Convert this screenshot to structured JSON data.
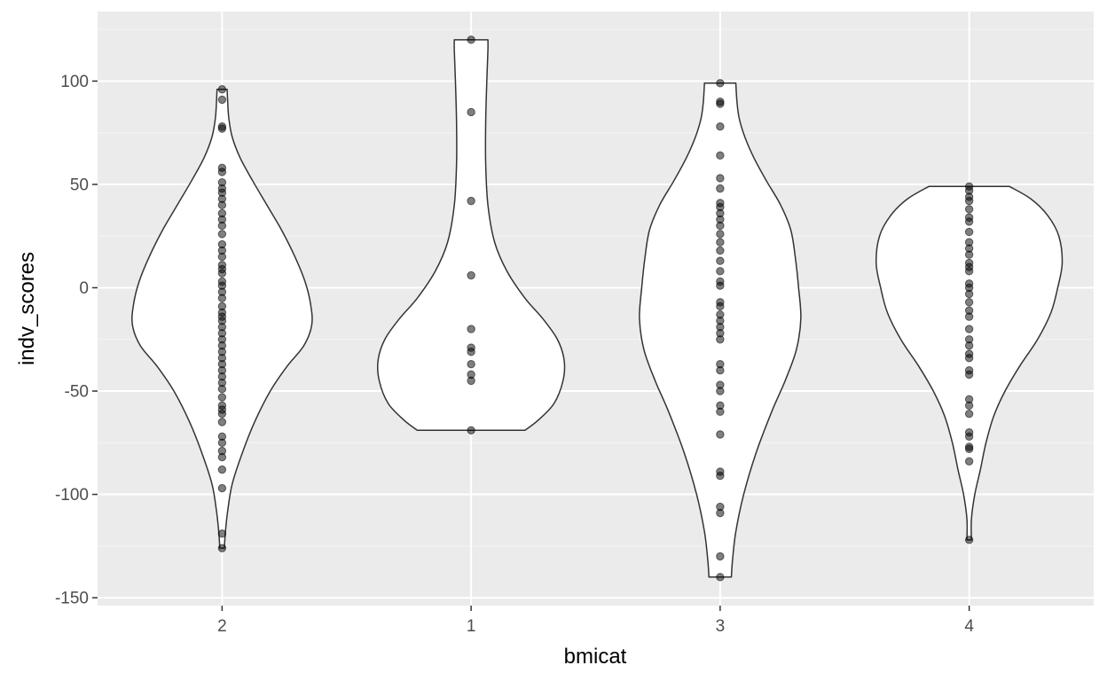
{
  "chart_data": {
    "type": "violin",
    "title": "",
    "xlabel": "bmicat",
    "ylabel": "indv_scores",
    "categories": [
      "2",
      "1",
      "3",
      "4"
    ],
    "ylim": [
      -153,
      121
    ],
    "yticks": [
      -150,
      -100,
      -50,
      0,
      50,
      100
    ],
    "ytick_labels": [
      "-150",
      "-100",
      "-50",
      "0",
      "50",
      "100"
    ],
    "grid": true,
    "colors": {
      "panel": "#ebebeb",
      "grid_major": "#ffffff",
      "grid_minor": "#f5f5f5",
      "violin_fill": "#ffffff",
      "violin_stroke": "#333333",
      "point": "#000000"
    },
    "violins": [
      {
        "category": "2",
        "range": [
          -126,
          96
        ],
        "profile": [
          {
            "y": -126,
            "w": 0.02
          },
          {
            "y": -118,
            "w": 0.03
          },
          {
            "y": -108,
            "w": 0.05
          },
          {
            "y": -95,
            "w": 0.09
          },
          {
            "y": -80,
            "w": 0.18
          },
          {
            "y": -65,
            "w": 0.29
          },
          {
            "y": -50,
            "w": 0.43
          },
          {
            "y": -38,
            "w": 0.58
          },
          {
            "y": -28,
            "w": 0.73
          },
          {
            "y": -18,
            "w": 0.8
          },
          {
            "y": -8,
            "w": 0.79
          },
          {
            "y": 3,
            "w": 0.74
          },
          {
            "y": 15,
            "w": 0.65
          },
          {
            "y": 28,
            "w": 0.53
          },
          {
            "y": 40,
            "w": 0.4
          },
          {
            "y": 52,
            "w": 0.27
          },
          {
            "y": 63,
            "w": 0.16
          },
          {
            "y": 73,
            "w": 0.09
          },
          {
            "y": 82,
            "w": 0.06
          },
          {
            "y": 90,
            "w": 0.05
          },
          {
            "y": 96,
            "w": 0.045
          }
        ],
        "points": [
          96,
          91,
          78,
          77,
          58,
          56,
          51,
          48,
          46,
          43,
          40,
          36,
          33,
          30,
          26,
          21,
          18,
          15,
          11,
          9,
          7,
          3,
          1,
          -2,
          -5,
          -9,
          -12,
          -14,
          -16,
          -19,
          -22,
          -25,
          -28,
          -31,
          -34,
          -37,
          -40,
          -43,
          -46,
          -49,
          -53,
          -57,
          -59,
          -61,
          -65,
          -72,
          -75,
          -79,
          -82,
          -88,
          -97,
          -119,
          -126
        ]
      },
      {
        "category": "1",
        "range": [
          -69,
          120
        ],
        "profile": [
          {
            "y": -69,
            "w": 0.48
          },
          {
            "y": -64,
            "w": 0.6
          },
          {
            "y": -56,
            "w": 0.74
          },
          {
            "y": -45,
            "w": 0.82
          },
          {
            "y": -35,
            "w": 0.83
          },
          {
            "y": -25,
            "w": 0.77
          },
          {
            "y": -15,
            "w": 0.64
          },
          {
            "y": -5,
            "w": 0.48
          },
          {
            "y": 8,
            "w": 0.32
          },
          {
            "y": 22,
            "w": 0.21
          },
          {
            "y": 40,
            "w": 0.15
          },
          {
            "y": 60,
            "w": 0.13
          },
          {
            "y": 80,
            "w": 0.13
          },
          {
            "y": 100,
            "w": 0.14
          },
          {
            "y": 115,
            "w": 0.15
          },
          {
            "y": 120,
            "w": 0.15
          }
        ],
        "points": [
          120,
          85,
          42,
          6,
          -20,
          -29,
          -31,
          -37,
          -42,
          -45,
          -69
        ]
      },
      {
        "category": "3",
        "range": [
          -140,
          99
        ],
        "profile": [
          {
            "y": -140,
            "w": 0.1
          },
          {
            "y": -132,
            "w": 0.11
          },
          {
            "y": -118,
            "w": 0.14
          },
          {
            "y": -100,
            "w": 0.21
          },
          {
            "y": -80,
            "w": 0.32
          },
          {
            "y": -60,
            "w": 0.46
          },
          {
            "y": -45,
            "w": 0.58
          },
          {
            "y": -30,
            "w": 0.68
          },
          {
            "y": -15,
            "w": 0.72
          },
          {
            "y": 0,
            "w": 0.7
          },
          {
            "y": 15,
            "w": 0.67
          },
          {
            "y": 28,
            "w": 0.63
          },
          {
            "y": 40,
            "w": 0.54
          },
          {
            "y": 52,
            "w": 0.41
          },
          {
            "y": 63,
            "w": 0.3
          },
          {
            "y": 73,
            "w": 0.22
          },
          {
            "y": 82,
            "w": 0.17
          },
          {
            "y": 90,
            "w": 0.15
          },
          {
            "y": 99,
            "w": 0.14
          }
        ],
        "points": [
          99,
          90,
          89,
          78,
          64,
          53,
          48,
          41,
          39,
          36,
          33,
          30,
          26,
          22,
          18,
          13,
          8,
          3,
          1,
          -7,
          -9,
          -13,
          -16,
          -19,
          -22,
          -25,
          -37,
          -40,
          -47,
          -50,
          -57,
          -60,
          -71,
          -89,
          -91,
          -106,
          -109,
          -130,
          -140
        ]
      },
      {
        "category": "4",
        "range": [
          -122,
          49
        ],
        "profile": [
          {
            "y": -122,
            "w": 0.02
          },
          {
            "y": -112,
            "w": 0.02
          },
          {
            "y": -100,
            "w": 0.05
          },
          {
            "y": -88,
            "w": 0.1
          },
          {
            "y": -75,
            "w": 0.15
          },
          {
            "y": -62,
            "w": 0.22
          },
          {
            "y": -50,
            "w": 0.32
          },
          {
            "y": -38,
            "w": 0.45
          },
          {
            "y": -25,
            "w": 0.61
          },
          {
            "y": -12,
            "w": 0.73
          },
          {
            "y": 0,
            "w": 0.79
          },
          {
            "y": 12,
            "w": 0.83
          },
          {
            "y": 25,
            "w": 0.8
          },
          {
            "y": 35,
            "w": 0.7
          },
          {
            "y": 43,
            "w": 0.55
          },
          {
            "y": 49,
            "w": 0.36
          }
        ],
        "points": [
          49,
          47,
          44,
          42,
          38,
          34,
          32,
          27,
          22,
          19,
          16,
          12,
          10,
          8,
          2,
          0,
          -3,
          -7,
          -11,
          -14,
          -20,
          -25,
          -28,
          -32,
          -34,
          -40,
          -42,
          -54,
          -57,
          -61,
          -70,
          -72,
          -77,
          -78,
          -84,
          -122
        ]
      }
    ]
  }
}
